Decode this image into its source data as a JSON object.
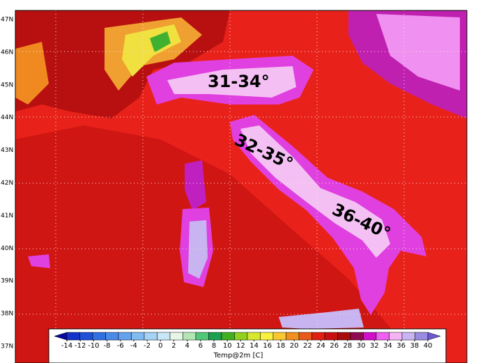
{
  "latitude_labels": [
    "47N",
    "46N",
    "45N",
    "44N",
    "43N",
    "42N",
    "41N",
    "40N",
    "39N",
    "38N",
    "37N"
  ],
  "annotations": [
    "31-34°",
    "32-35°",
    "36-40°"
  ],
  "colorbar": {
    "label": "Temp@2m [C]",
    "ticks": [
      -14,
      -12,
      -10,
      -8,
      -6,
      -4,
      -2,
      0,
      2,
      4,
      6,
      8,
      10,
      12,
      14,
      16,
      18,
      20,
      22,
      24,
      26,
      28,
      30,
      32,
      34,
      36,
      38,
      40
    ],
    "colors": [
      "#0a0aa0",
      "#1432c8",
      "#2050d8",
      "#3070e0",
      "#4a8ae8",
      "#64a2ee",
      "#82baf2",
      "#a6d2f6",
      "#c8e6f8",
      "#e6f6e6",
      "#b4e6b4",
      "#50c878",
      "#1aa050",
      "#40b020",
      "#90d020",
      "#d8e830",
      "#f8f040",
      "#f8c830",
      "#f09020",
      "#e85a1a",
      "#e02010",
      "#c81010",
      "#a80c0c",
      "#900a50",
      "#d010c8",
      "#f060f0",
      "#f4b4f4",
      "#c8b4f0",
      "#9a8ae0",
      "#6a5ad0"
    ]
  }
}
